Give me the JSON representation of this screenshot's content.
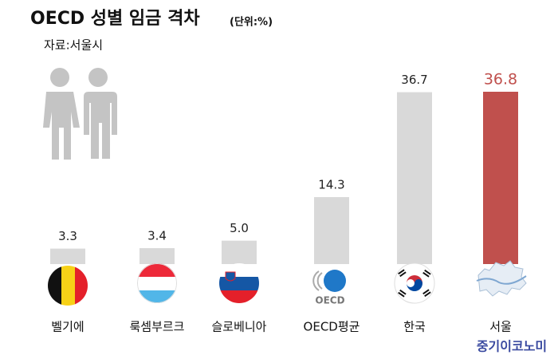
{
  "chart_data": {
    "type": "bar",
    "title": "OECD 성별 임금 격차",
    "unit": "(단위:%)",
    "source": "자료:서울시",
    "watermark": "중기이코노미",
    "categories": [
      "벨기에",
      "룩셈부르크",
      "슬로베니아",
      "OECD평균",
      "한국",
      "서울"
    ],
    "values": [
      3.3,
      3.4,
      5.0,
      14.3,
      36.7,
      36.8
    ],
    "value_labels": [
      "3.3",
      "3.4",
      "5.0",
      "14.3",
      "36.7",
      "36.8"
    ],
    "colors": [
      "#d9d9d9",
      "#d9d9d9",
      "#d9d9d9",
      "#d9d9d9",
      "#d9d9d9",
      "#c0504d"
    ],
    "label_colors": [
      "#222222",
      "#222222",
      "#222222",
      "#222222",
      "#222222",
      "#c0504d"
    ]
  }
}
